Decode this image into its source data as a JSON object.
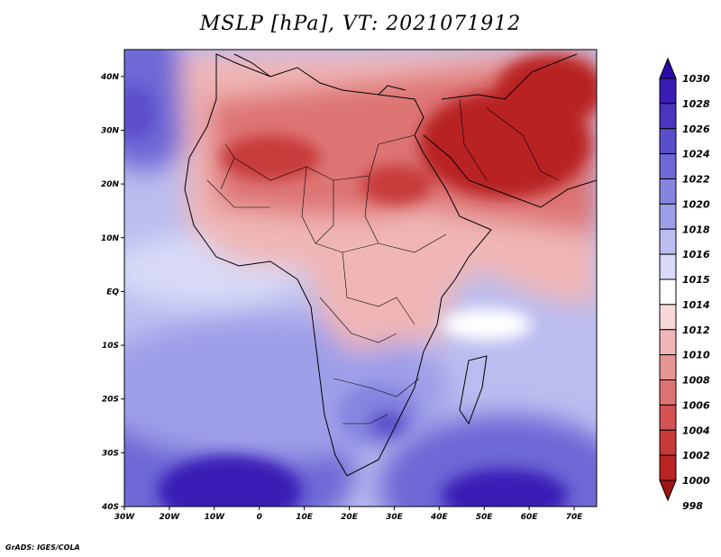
{
  "title": "MSLP [hPa], VT: 2021071912",
  "credit": "GrADS: IGES/COLA",
  "map": {
    "lon_range": [
      -30,
      75
    ],
    "lat_range": [
      -40,
      45
    ],
    "lat_ticks": [
      {
        "value": 40,
        "label": "40N"
      },
      {
        "value": 30,
        "label": "30N"
      },
      {
        "value": 20,
        "label": "20N"
      },
      {
        "value": 10,
        "label": "10N"
      },
      {
        "value": 0,
        "label": "EQ"
      },
      {
        "value": -10,
        "label": "10S"
      },
      {
        "value": -20,
        "label": "20S"
      },
      {
        "value": -30,
        "label": "30S"
      },
      {
        "value": -40,
        "label": "40S"
      }
    ],
    "lon_ticks": [
      {
        "value": -30,
        "label": "30W"
      },
      {
        "value": -20,
        "label": "20W"
      },
      {
        "value": -10,
        "label": "10W"
      },
      {
        "value": 0,
        "label": "0"
      },
      {
        "value": 10,
        "label": "10E"
      },
      {
        "value": 20,
        "label": "20E"
      },
      {
        "value": 30,
        "label": "30E"
      },
      {
        "value": 40,
        "label": "40E"
      },
      {
        "value": 50,
        "label": "50E"
      },
      {
        "value": 60,
        "label": "60E"
      },
      {
        "value": 70,
        "label": "70E"
      }
    ]
  },
  "colorbar": {
    "levels": [
      {
        "label": "1030",
        "color": "#2a0aa8"
      },
      {
        "label": "1028",
        "color": "#3a1cb6"
      },
      {
        "label": "1026",
        "color": "#4a34c0"
      },
      {
        "label": "1024",
        "color": "#5b4ecb"
      },
      {
        "label": "1022",
        "color": "#6d68d6"
      },
      {
        "label": "1020",
        "color": "#8584e0"
      },
      {
        "label": "1018",
        "color": "#9e9fe9"
      },
      {
        "label": "1016",
        "color": "#bbbdf0"
      },
      {
        "label": "1015",
        "color": "#d8daf7"
      },
      {
        "label": "1014",
        "color": "#ffffff"
      },
      {
        "label": "1012",
        "color": "#f8d8d8"
      },
      {
        "label": "1010",
        "color": "#f0b6b6"
      },
      {
        "label": "1008",
        "color": "#e79494"
      },
      {
        "label": "1006",
        "color": "#de7474"
      },
      {
        "label": "1004",
        "color": "#d45454"
      },
      {
        "label": "1002",
        "color": "#c83a3a"
      },
      {
        "label": "1000",
        "color": "#b82424"
      },
      {
        "label": "998",
        "color": "#a01414"
      }
    ]
  }
}
